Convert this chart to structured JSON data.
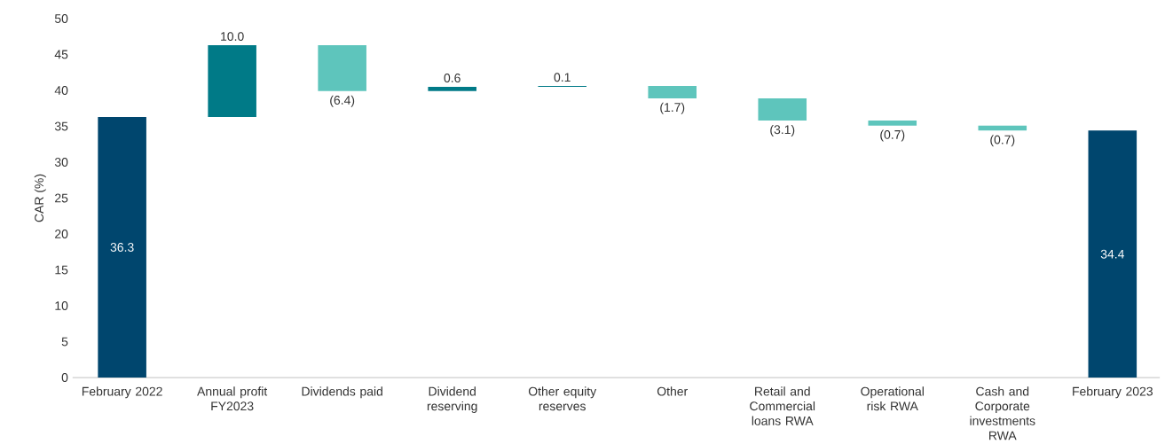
{
  "chart_data": {
    "type": "bar",
    "ylabel": "CAR (%)",
    "categories": [
      "February 2022",
      "Annual profit FY2023",
      "Dividends paid",
      "Dividend reserving",
      "Other equity reserves",
      "Other",
      "Retail and Commercial loans RWA",
      "Operational risk RWA",
      "Cash and Corporate investments RWA",
      "February 2023"
    ],
    "values": [
      36.3,
      10.0,
      -6.4,
      0.6,
      0.1,
      -1.7,
      -3.1,
      -0.7,
      -0.7,
      34.4
    ],
    "base": [
      0,
      36.3,
      46.3,
      39.9,
      40.5,
      40.6,
      38.9,
      35.8,
      35.1,
      0
    ],
    "colors": [
      "#00466e",
      "#007a87",
      "#5ec5bc",
      "#007a87",
      "#007a87",
      "#5ec5bc",
      "#5ec5bc",
      "#5ec5bc",
      "#5ec5bc",
      "#00466e"
    ],
    "value_labels": [
      "36.3",
      "10.0",
      "(6.4)",
      "0.6",
      "0.1",
      "(1.7)",
      "(3.1)",
      "(0.7)",
      "(0.7)",
      "34.4"
    ],
    "ylim": [
      0,
      50
    ],
    "yticks": [
      0,
      5,
      10,
      15,
      20,
      25,
      30,
      35,
      40,
      45,
      50
    ]
  }
}
